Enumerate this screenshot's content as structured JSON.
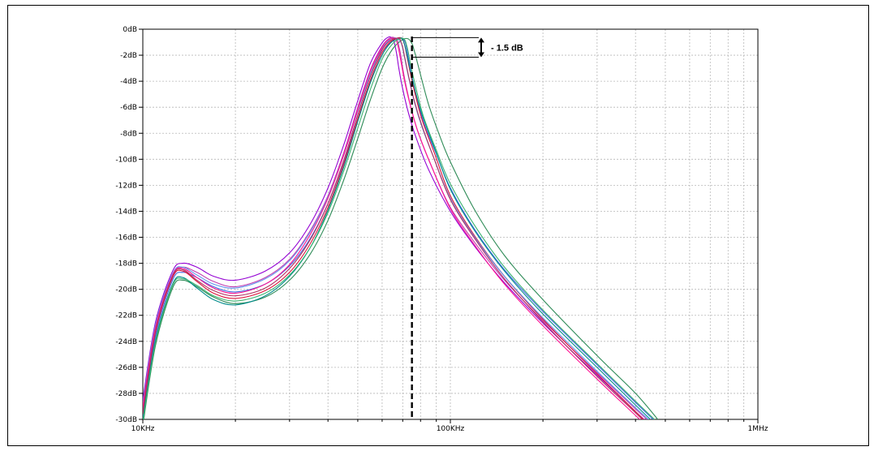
{
  "chart_data": {
    "type": "line",
    "title": "",
    "xlabel": "",
    "ylabel": "",
    "x_scale": "log",
    "xlim": [
      10000,
      1000000
    ],
    "ylim": [
      -30,
      0
    ],
    "x_ticks": [
      {
        "value": 10000,
        "label": "10KHz"
      },
      {
        "value": 100000,
        "label": "100KHz"
      },
      {
        "value": 1000000,
        "label": "1MHz"
      }
    ],
    "y_ticks": [
      {
        "value": 0,
        "label": "0dB"
      },
      {
        "value": -2,
        "label": "-2dB"
      },
      {
        "value": -4,
        "label": "-4dB"
      },
      {
        "value": -6,
        "label": "-6dB"
      },
      {
        "value": -8,
        "label": "-8dB"
      },
      {
        "value": -10,
        "label": "-10dB"
      },
      {
        "value": -12,
        "label": "-12dB"
      },
      {
        "value": -14,
        "label": "-14dB"
      },
      {
        "value": -16,
        "label": "-16dB"
      },
      {
        "value": -18,
        "label": "-18dB"
      },
      {
        "value": -20,
        "label": "-20dB"
      },
      {
        "value": -22,
        "label": "-22dB"
      },
      {
        "value": -24,
        "label": "-24dB"
      },
      {
        "value": -26,
        "label": "-26dB"
      },
      {
        "value": -28,
        "label": "-28dB"
      },
      {
        "value": -30,
        "label": "-30dB"
      }
    ],
    "grid": true,
    "series": [
      {
        "color": "#9400d3",
        "x": [
          10000,
          11000,
          12500,
          13500,
          15000,
          17000,
          20000,
          25000,
          30000,
          35000,
          40000,
          45000,
          50000,
          55000,
          60000,
          63000,
          65000,
          66000,
          67000,
          68000,
          70000,
          73000,
          77000,
          85000,
          100000,
          120000,
          150000,
          200000,
          300000,
          400000,
          450000
        ],
        "y": [
          -28.5,
          -22.5,
          -18.6,
          -18.0,
          -18.3,
          -19.0,
          -19.3,
          -18.6,
          -17.2,
          -15.0,
          -12.2,
          -8.9,
          -5.5,
          -2.6,
          -1.05,
          -0.6,
          -0.75,
          -1.2,
          -2.0,
          -3.0,
          -4.6,
          -6.4,
          -8.2,
          -10.8,
          -14.0,
          -16.7,
          -19.5,
          -22.6,
          -26.6,
          -29.4,
          -30.5
        ]
      },
      {
        "color": "#c03cb0",
        "x": [
          10000,
          11000,
          12500,
          13500,
          15000,
          17000,
          20000,
          25000,
          30000,
          35000,
          40000,
          45000,
          50000,
          55000,
          60000,
          64000,
          67000,
          68000,
          69000,
          70000,
          72000,
          75000,
          79000,
          87000,
          100000,
          120000,
          150000,
          200000,
          300000,
          400000,
          450000
        ],
        "y": [
          -29.2,
          -23.0,
          -18.9,
          -18.3,
          -18.7,
          -19.4,
          -19.8,
          -19.1,
          -17.7,
          -15.5,
          -12.8,
          -9.5,
          -6.0,
          -3.1,
          -1.3,
          -0.65,
          -0.8,
          -1.3,
          -2.0,
          -3.0,
          -4.5,
          -6.3,
          -8.1,
          -10.6,
          -13.7,
          -16.4,
          -19.3,
          -22.4,
          -26.4,
          -29.2,
          -30.3
        ]
      },
      {
        "color": "#4169e1",
        "x": [
          10000,
          11000,
          12500,
          13500,
          15000,
          17000,
          20000,
          25000,
          30000,
          35000,
          40000,
          45000,
          50000,
          55000,
          60000,
          65000,
          69000,
          71000,
          72000,
          73000,
          75000,
          78000,
          82000,
          90000,
          100000,
          120000,
          150000,
          200000,
          300000,
          400000,
          480000
        ],
        "y": [
          -29.8,
          -23.6,
          -19.3,
          -18.7,
          -19.1,
          -19.8,
          -20.2,
          -19.6,
          -18.2,
          -16.1,
          -13.4,
          -10.2,
          -6.9,
          -3.9,
          -1.8,
          -0.9,
          -0.65,
          -0.9,
          -1.4,
          -2.2,
          -3.6,
          -5.4,
          -7.2,
          -9.6,
          -12.2,
          -15.4,
          -18.5,
          -21.7,
          -25.8,
          -28.7,
          -30.5
        ]
      },
      {
        "color": "#2e8b57",
        "x": [
          10000,
          11000,
          12500,
          13500,
          15000,
          17000,
          20000,
          25000,
          30000,
          35000,
          40000,
          45000,
          50000,
          55000,
          60000,
          65000,
          70000,
          73000,
          75000,
          76000,
          78000,
          81000,
          85000,
          92000,
          100000,
          120000,
          150000,
          200000,
          300000,
          400000,
          480000
        ],
        "y": [
          -30.5,
          -24.3,
          -19.9,
          -19.3,
          -19.8,
          -20.6,
          -21.1,
          -20.6,
          -19.3,
          -17.3,
          -14.7,
          -11.6,
          -8.4,
          -5.4,
          -3.0,
          -1.5,
          -0.8,
          -0.75,
          -1.1,
          -1.5,
          -2.5,
          -4.0,
          -5.8,
          -8.1,
          -10.2,
          -13.9,
          -17.4,
          -20.8,
          -25.1,
          -28.0,
          -30.2
        ]
      },
      {
        "color": "#dc143c",
        "x": [
          10000,
          11000,
          12500,
          13500,
          15000,
          17000,
          20000,
          25000,
          30000,
          35000,
          40000,
          45000,
          50000,
          55000,
          60000,
          64000,
          68000,
          70000,
          71000,
          72000,
          74000,
          77000,
          81000,
          89000,
          100000,
          120000,
          150000,
          200000,
          300000,
          400000,
          450000
        ],
        "y": [
          -29.6,
          -23.3,
          -19.1,
          -18.6,
          -19.4,
          -20.3,
          -20.7,
          -20.1,
          -18.7,
          -16.5,
          -13.7,
          -10.4,
          -6.9,
          -3.9,
          -1.8,
          -0.95,
          -0.65,
          -0.8,
          -1.2,
          -1.9,
          -3.3,
          -5.1,
          -7.0,
          -9.6,
          -12.8,
          -15.9,
          -19.0,
          -22.3,
          -26.5,
          -29.4,
          -30.6
        ]
      },
      {
        "color": "#008b8b",
        "x": [
          10000,
          11000,
          12500,
          13500,
          15000,
          17000,
          20000,
          25000,
          30000,
          35000,
          40000,
          45000,
          50000,
          55000,
          60000,
          64000,
          68000,
          70000,
          71000,
          72000,
          74000,
          77000,
          81000,
          89000,
          100000,
          120000,
          150000,
          200000,
          300000,
          400000,
          470000
        ],
        "y": [
          -30.0,
          -23.9,
          -19.6,
          -19.1,
          -19.9,
          -20.8,
          -21.2,
          -20.5,
          -19.0,
          -16.8,
          -13.9,
          -10.6,
          -7.1,
          -4.1,
          -2.0,
          -1.05,
          -0.7,
          -0.8,
          -1.2,
          -1.8,
          -3.1,
          -4.8,
          -6.6,
          -9.2,
          -12.3,
          -15.5,
          -18.6,
          -21.9,
          -26.0,
          -28.9,
          -30.5
        ]
      },
      {
        "color": "#6495ed",
        "x": [
          10000,
          11000,
          12500,
          13500,
          15000,
          17000,
          20000,
          25000,
          30000,
          35000,
          40000,
          45000,
          50000,
          55000,
          60000,
          64000,
          67000,
          69000,
          70000,
          71000,
          73000,
          76000,
          80000,
          88000,
          100000,
          120000,
          150000,
          200000,
          300000,
          400000,
          460000
        ],
        "y": [
          -28.8,
          -22.7,
          -18.8,
          -18.3,
          -18.9,
          -19.6,
          -19.9,
          -19.2,
          -17.8,
          -15.6,
          -12.9,
          -9.7,
          -6.3,
          -3.4,
          -1.5,
          -0.75,
          -0.7,
          -1.0,
          -1.5,
          -2.2,
          -3.6,
          -5.4,
          -7.2,
          -9.8,
          -13.0,
          -16.0,
          -19.0,
          -22.2,
          -26.3,
          -29.1,
          -30.4
        ]
      },
      {
        "color": "#ff1493",
        "x": [
          10000,
          11000,
          12500,
          13500,
          15000,
          17000,
          20000,
          25000,
          30000,
          35000,
          40000,
          45000,
          50000,
          55000,
          60000,
          63000,
          66000,
          67000,
          68000,
          69000,
          71000,
          74000,
          78000,
          86000,
          100000,
          120000,
          150000,
          200000,
          300000,
          400000,
          450000
        ],
        "y": [
          -29.0,
          -22.9,
          -18.9,
          -18.4,
          -19.1,
          -19.9,
          -20.3,
          -19.6,
          -18.1,
          -15.8,
          -13.0,
          -9.7,
          -6.2,
          -3.2,
          -1.4,
          -0.8,
          -0.7,
          -1.0,
          -1.6,
          -2.4,
          -4.0,
          -5.8,
          -7.7,
          -10.3,
          -13.8,
          -16.6,
          -19.6,
          -22.8,
          -26.9,
          -29.7,
          -30.8
        ]
      },
      {
        "color": "#3cb371",
        "x": [
          10000,
          11000,
          12500,
          13500,
          15000,
          17000,
          20000,
          25000,
          30000,
          35000,
          40000,
          45000,
          50000,
          55000,
          60000,
          65000,
          69000,
          71000,
          72000,
          73000,
          75000,
          78000,
          82000,
          90000,
          100000,
          120000,
          150000,
          200000,
          300000,
          400000,
          490000
        ],
        "y": [
          -30.3,
          -24.1,
          -19.7,
          -19.2,
          -19.7,
          -20.5,
          -20.9,
          -20.3,
          -18.9,
          -16.8,
          -14.1,
          -10.9,
          -7.6,
          -4.6,
          -2.3,
          -1.1,
          -0.7,
          -0.8,
          -1.2,
          -1.8,
          -3.2,
          -4.9,
          -6.8,
          -9.3,
          -11.9,
          -15.1,
          -18.3,
          -21.6,
          -25.7,
          -28.6,
          -30.6
        ]
      },
      {
        "color": "#b03060",
        "x": [
          10000,
          11000,
          12500,
          13500,
          15000,
          17000,
          20000,
          25000,
          30000,
          35000,
          40000,
          45000,
          50000,
          55000,
          60000,
          64000,
          68000,
          69000,
          70000,
          71000,
          73000,
          76000,
          80000,
          88000,
          100000,
          120000,
          150000,
          200000,
          300000,
          400000,
          450000
        ],
        "y": [
          -29.4,
          -23.2,
          -19.0,
          -18.5,
          -19.3,
          -20.1,
          -20.5,
          -19.9,
          -18.4,
          -16.2,
          -13.4,
          -10.1,
          -6.6,
          -3.6,
          -1.6,
          -0.85,
          -0.7,
          -0.95,
          -1.4,
          -2.1,
          -3.5,
          -5.3,
          -7.1,
          -9.8,
          -13.1,
          -16.1,
          -19.2,
          -22.5,
          -26.7,
          -29.5,
          -30.7
        ]
      }
    ],
    "annotations": [
      {
        "type": "vertical-dashed-line",
        "x": 75000
      },
      {
        "type": "bracket",
        "y_top": -0.65,
        "y_bottom": -2.15,
        "text": "- 1.5 dB"
      }
    ]
  }
}
